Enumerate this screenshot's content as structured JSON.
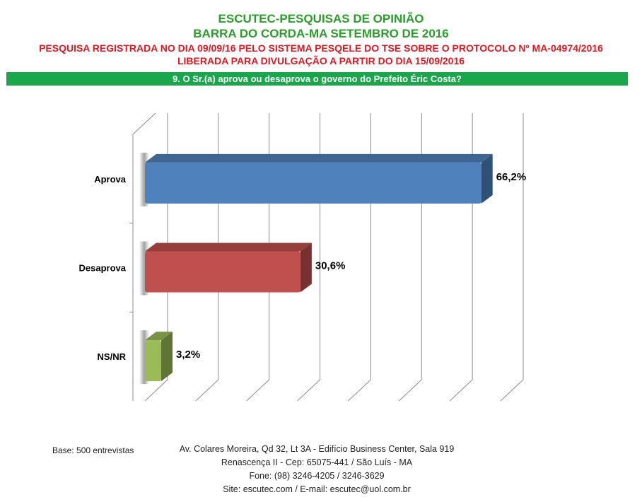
{
  "header": {
    "title_line1": "ESCUTEC-PESQUISAS DE OPINIÃO",
    "title_line2": "BARRA DO CORDA-MA SETEMBRO DE 2016",
    "registration_line1": "PESQUISA REGISTRADA NO DIA 09/09/16 PELO SISTEMA PESQELE DO TSE SOBRE O PROTOCOLO Nº MA-04974/2016",
    "registration_line2": "LIBERADA PARA DIVULGAÇÃO A PARTIR DO DIA 15/09/2016"
  },
  "question": "9. O Sr.(a) aprova ou desaprova o governo do Prefeito Éric Costa?",
  "chart_data": {
    "type": "bar",
    "orientation": "horizontal",
    "title": "9. O Sr.(a) aprova ou desaprova o governo do Prefeito Éric Costa?",
    "categories": [
      "Aprova",
      "Desaprova",
      "NS/NR"
    ],
    "values": [
      66.2,
      30.6,
      3.2
    ],
    "value_labels": [
      "66,2%",
      "30,6%",
      "3,2%"
    ],
    "colors": [
      "#4f81bd",
      "#c0504d",
      "#9bbb59"
    ],
    "xlim": [
      0,
      70
    ],
    "grid": true,
    "xlabel": "",
    "ylabel": ""
  },
  "footer": {
    "base_note": "Base: 500 entrevistas",
    "address_lines": [
      "Av. Colares Moreira, Qd 32, Lt 3A - Edifício Business Center, Sala 919",
      "Renascença II - Cep: 65075-441 / São Luís - MA",
      "Fone: (98) 3246-4205 / 3246-3629",
      "Site: escutec.com / E-mail: escutec@uol.com.br"
    ]
  }
}
